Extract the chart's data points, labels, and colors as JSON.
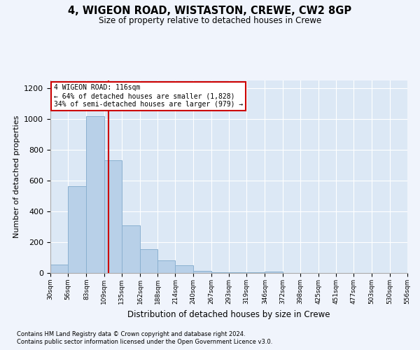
{
  "title": "4, WIGEON ROAD, WISTASTON, CREWE, CW2 8GP",
  "subtitle": "Size of property relative to detached houses in Crewe",
  "xlabel": "Distribution of detached houses by size in Crewe",
  "ylabel": "Number of detached properties",
  "bar_color": "#b8d0e8",
  "bar_edge_color": "#8ab0d0",
  "background_color": "#dce8f5",
  "figure_color": "#f0f4fc",
  "grid_color": "#ffffff",
  "bins": [
    30,
    56,
    83,
    109,
    135,
    162,
    188,
    214,
    240,
    267,
    293,
    319,
    346,
    372,
    398,
    425,
    451,
    477,
    503,
    530,
    556
  ],
  "values": [
    55,
    565,
    1020,
    730,
    310,
    155,
    80,
    50,
    15,
    5,
    5,
    5,
    10,
    0,
    0,
    0,
    0,
    0,
    0,
    0
  ],
  "property_size": 116,
  "property_label": "4 WIGEON ROAD: 116sqm",
  "annotation_line1": "← 64% of detached houses are smaller (1,828)",
  "annotation_line2": "34% of semi-detached houses are larger (979) →",
  "annotation_box_color": "#ffffff",
  "annotation_box_edge_color": "#cc0000",
  "vline_color": "#cc0000",
  "ylim": [
    0,
    1250
  ],
  "yticks": [
    0,
    200,
    400,
    600,
    800,
    1000,
    1200
  ],
  "footnote1": "Contains HM Land Registry data © Crown copyright and database right 2024.",
  "footnote2": "Contains public sector information licensed under the Open Government Licence v3.0."
}
